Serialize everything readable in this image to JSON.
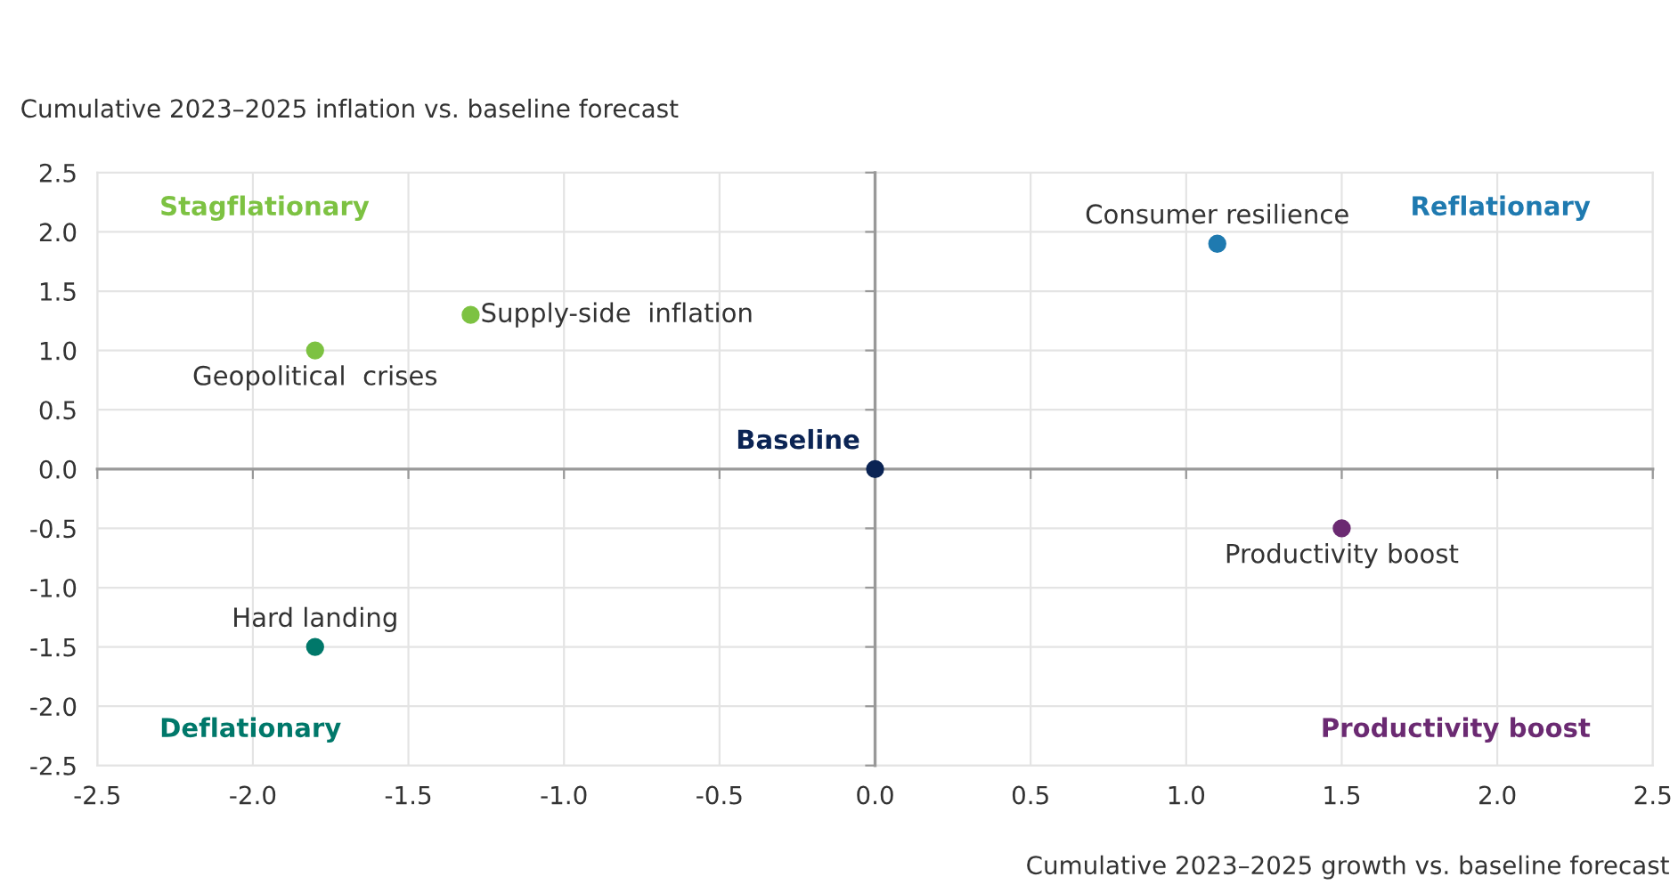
{
  "chart_data": {
    "type": "scatter",
    "xlabel": "Cumulative 2023–2025 growth vs. baseline forecast",
    "ylabel": "Cumulative 2023–2025 inflation vs. baseline forecast",
    "x": [
      -1.3,
      1.1,
      -1.8,
      1.5,
      -1.8,
      0
    ],
    "values": [
      1.3,
      1.9,
      -1.5,
      -0.5,
      1.0,
      0
    ],
    "colors": [
      "#7dc242",
      "#1f7ab0",
      "#00786a",
      "#6b2a72",
      "#7dc242",
      "#0b2454"
    ],
    "annotations": [
      "Stagflationary",
      "Reflationary",
      "Deflationary",
      "Productivity boost",
      {
        "text": "Supply-side  inflation",
        "x": -1.3,
        "y": 1.3
      },
      {
        "text": "Consumer resilience",
        "x": 1.1,
        "y": 1.9
      },
      {
        "text": "Hard landing",
        "x": -1.8,
        "y": -1.5
      },
      {
        "text": "Productivity boost",
        "x": 1.5,
        "y": -0.5
      },
      {
        "text": "Geopolitical  crises",
        "x": -1.8,
        "y": 1.0
      },
      {
        "text": "Baseline",
        "x": 0,
        "y": 0
      }
    ],
    "xlim": [
      -2.5,
      2.5
    ],
    "ylim": [
      -2.5,
      2.5
    ],
    "xticks": [
      {
        "value": -2.5,
        "label": "-2.5"
      },
      {
        "value": -2.0,
        "label": "-2.0"
      },
      {
        "value": -1.5,
        "label": "-1.5"
      },
      {
        "value": -1.0,
        "label": "-1.0"
      },
      {
        "value": -0.5,
        "label": "-0.5"
      },
      {
        "value": 0,
        "label": "0.0"
      },
      {
        "value": 0.5,
        "label": "0.5"
      },
      {
        "value": 1.0,
        "label": "1.0"
      },
      {
        "value": 1.5,
        "label": "1.5"
      },
      {
        "value": 2.0,
        "label": "2.0"
      },
      {
        "value": 2.5,
        "label": "2.5"
      }
    ],
    "yticks": [
      {
        "value": 2.5,
        "label": "2.5"
      },
      {
        "value": 2.0,
        "label": "2.0"
      },
      {
        "value": 1.5,
        "label": "1.5"
      },
      {
        "value": 1.0,
        "label": "1.0"
      },
      {
        "value": 0.5,
        "label": "0.5"
      },
      {
        "value": 0,
        "label": "0.0"
      },
      {
        "value": -0.5,
        "label": "-0.5"
      },
      {
        "value": -1.0,
        "label": "-1.0"
      },
      {
        "value": -1.5,
        "label": "-1.5"
      },
      {
        "value": -2.0,
        "label": "-2.0"
      },
      {
        "value": -2.5,
        "label": "-2.5"
      }
    ],
    "grid": true,
    "marker": "circle"
  }
}
